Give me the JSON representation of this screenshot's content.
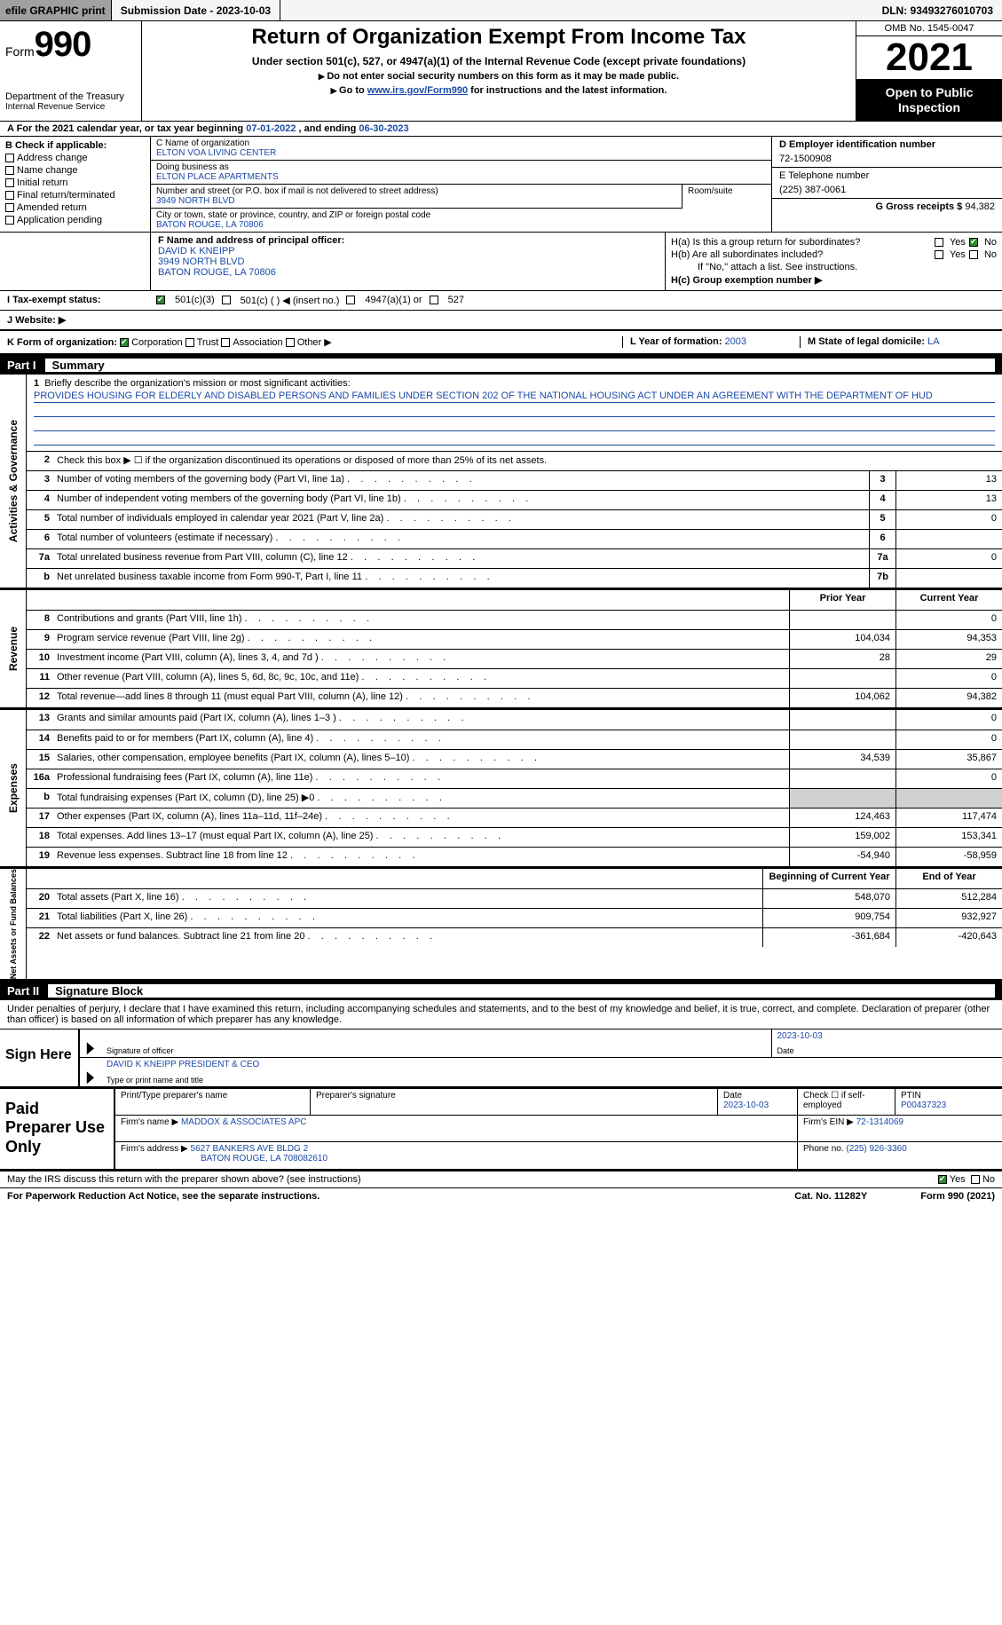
{
  "topbar": {
    "efile": "efile GRAPHIC print",
    "sub_date_label": "Submission Date - 2023-10-03",
    "dln": "DLN: 93493276010703"
  },
  "header": {
    "form_word": "Form",
    "form_num": "990",
    "title": "Return of Organization Exempt From Income Tax",
    "subtitle": "Under section 501(c), 527, or 4947(a)(1) of the Internal Revenue Code (except private foundations)",
    "note1": "Do not enter social security numbers on this form as it may be made public.",
    "note2_pre": "Go to ",
    "note2_link": "www.irs.gov/Form990",
    "note2_post": " for instructions and the latest information.",
    "dept": "Department of the Treasury",
    "irs": "Internal Revenue Service",
    "omb": "OMB No. 1545-0047",
    "year": "2021",
    "open": "Open to Public Inspection"
  },
  "rowA": {
    "pre": "A For the 2021 calendar year, or tax year beginning ",
    "begin": "07-01-2022",
    "mid": " , and ending ",
    "end": "06-30-2023"
  },
  "colB": {
    "title": "B Check if applicable:",
    "items": [
      "Address change",
      "Name change",
      "Initial return",
      "Final return/terminated",
      "Amended return",
      "Application pending"
    ]
  },
  "colC": {
    "name_lbl": "C Name of organization",
    "name": "ELTON VOA LIVING CENTER",
    "dba_lbl": "Doing business as",
    "dba": "ELTON PLACE APARTMENTS",
    "street_lbl": "Number and street (or P.O. box if mail is not delivered to street address)",
    "street": "3949 NORTH BLVD",
    "room_lbl": "Room/suite",
    "city_lbl": "City or town, state or province, country, and ZIP or foreign postal code",
    "city": "BATON ROUGE, LA  70806"
  },
  "colD": {
    "ein_lbl": "D Employer identification number",
    "ein": "72-1500908",
    "tel_lbl": "E Telephone number",
    "tel": "(225) 387-0061",
    "gross_lbl": "G Gross receipts $ ",
    "gross": "94,382"
  },
  "blockF": {
    "lbl": "F Name and address of principal officer:",
    "name": "DAVID K KNEIPP",
    "addr1": "3949 NORTH BLVD",
    "addr2": "BATON ROUGE, LA  70806"
  },
  "blockH": {
    "ha_lbl": "H(a)  Is this a group return for subordinates?",
    "hb_lbl": "H(b)  Are all subordinates included?",
    "hb_note": "If \"No,\" attach a list. See instructions.",
    "hc_lbl": "H(c)  Group exemption number ▶",
    "yes": "Yes",
    "no": "No"
  },
  "taxRow": {
    "lbl": "I  Tax-exempt status:",
    "o1": "501(c)(3)",
    "o2": "501(c) (   ) ◀ (insert no.)",
    "o3": "4947(a)(1) or",
    "o4": "527"
  },
  "web": {
    "lbl": "J  Website: ▶"
  },
  "korg": {
    "lbl": "K Form of organization:",
    "o1": "Corporation",
    "o2": "Trust",
    "o3": "Association",
    "o4": "Other ▶",
    "l_lbl": "L Year of formation: ",
    "l_val": "2003",
    "m_lbl": "M State of legal domicile: ",
    "m_val": "LA"
  },
  "part1": {
    "num": "Part I",
    "title": "Summary"
  },
  "sectA": {
    "label": "Activities & Governance",
    "l1_lbl": "Briefly describe the organization's mission or most significant activities:",
    "l1_txt": "PROVIDES HOUSING FOR ELDERLY AND DISABLED PERSONS AND FAMILIES UNDER SECTION 202 OF THE NATIONAL HOUSING ACT UNDER AN AGREEMENT WITH THE DEPARTMENT OF HUD",
    "l2": "Check this box ▶ ☐  if the organization discontinued its operations or disposed of more than 25% of its net assets.",
    "l3": "Number of voting members of the governing body (Part VI, line 1a)",
    "l4": "Number of independent voting members of the governing body (Part VI, line 1b)",
    "l5": "Total number of individuals employed in calendar year 2021 (Part V, line 2a)",
    "l6": "Total number of volunteers (estimate if necessary)",
    "l7a": "Total unrelated business revenue from Part VIII, column (C), line 12",
    "l7b": "Net unrelated business taxable income from Form 990-T, Part I, line 11",
    "v3": "13",
    "v4": "13",
    "v5": "0",
    "v6": "",
    "v7a": "0",
    "v7b": ""
  },
  "colhdr": {
    "prior": "Prior Year",
    "current": "Current Year"
  },
  "sectR": {
    "label": "Revenue",
    "rows": [
      {
        "n": "8",
        "t": "Contributions and grants (Part VIII, line 1h)",
        "p": "",
        "c": "0"
      },
      {
        "n": "9",
        "t": "Program service revenue (Part VIII, line 2g)",
        "p": "104,034",
        "c": "94,353"
      },
      {
        "n": "10",
        "t": "Investment income (Part VIII, column (A), lines 3, 4, and 7d )",
        "p": "28",
        "c": "29"
      },
      {
        "n": "11",
        "t": "Other revenue (Part VIII, column (A), lines 5, 6d, 8c, 9c, 10c, and 11e)",
        "p": "",
        "c": "0"
      },
      {
        "n": "12",
        "t": "Total revenue—add lines 8 through 11 (must equal Part VIII, column (A), line 12)",
        "p": "104,062",
        "c": "94,382"
      }
    ]
  },
  "sectE": {
    "label": "Expenses",
    "rows": [
      {
        "n": "13",
        "t": "Grants and similar amounts paid (Part IX, column (A), lines 1–3 )",
        "p": "",
        "c": "0"
      },
      {
        "n": "14",
        "t": "Benefits paid to or for members (Part IX, column (A), line 4)",
        "p": "",
        "c": "0"
      },
      {
        "n": "15",
        "t": "Salaries, other compensation, employee benefits (Part IX, column (A), lines 5–10)",
        "p": "34,539",
        "c": "35,867"
      },
      {
        "n": "16a",
        "t": "Professional fundraising fees (Part IX, column (A), line 11e)",
        "p": "",
        "c": "0"
      },
      {
        "n": "b",
        "t": "Total fundraising expenses (Part IX, column (D), line 25) ▶0",
        "p": "grey",
        "c": "grey"
      },
      {
        "n": "17",
        "t": "Other expenses (Part IX, column (A), lines 11a–11d, 11f–24e)",
        "p": "124,463",
        "c": "117,474"
      },
      {
        "n": "18",
        "t": "Total expenses. Add lines 13–17 (must equal Part IX, column (A), line 25)",
        "p": "159,002",
        "c": "153,341"
      },
      {
        "n": "19",
        "t": "Revenue less expenses. Subtract line 18 from line 12",
        "p": "-54,940",
        "c": "-58,959"
      }
    ]
  },
  "colhdr2": {
    "prior": "Beginning of Current Year",
    "current": "End of Year"
  },
  "sectN": {
    "label": "Net Assets or Fund Balances",
    "rows": [
      {
        "n": "20",
        "t": "Total assets (Part X, line 16)",
        "p": "548,070",
        "c": "512,284"
      },
      {
        "n": "21",
        "t": "Total liabilities (Part X, line 26)",
        "p": "909,754",
        "c": "932,927"
      },
      {
        "n": "22",
        "t": "Net assets or fund balances. Subtract line 21 from line 20",
        "p": "-361,684",
        "c": "-420,643"
      }
    ]
  },
  "part2": {
    "num": "Part II",
    "title": "Signature Block"
  },
  "sigtext": "Under penalties of perjury, I declare that I have examined this return, including accompanying schedules and statements, and to the best of my knowledge and belief, it is true, correct, and complete. Declaration of preparer (other than officer) is based on all information of which preparer has any knowledge.",
  "sign": {
    "left": "Sign Here",
    "sig_lbl": "Signature of officer",
    "date_lbl": "Date",
    "date": "2023-10-03",
    "name": "DAVID K KNEIPP  PRESIDENT & CEO",
    "name_lbl": "Type or print name and title"
  },
  "paid": {
    "left": "Paid Preparer Use Only",
    "r1c1_lbl": "Print/Type preparer's name",
    "r1c2_lbl": "Preparer's signature",
    "r1c3_lbl": "Date",
    "r1c3": "2023-10-03",
    "r1c4_lbl": "Check ☐ if self-employed",
    "r1c5_lbl": "PTIN",
    "r1c5": "P00437323",
    "r2_lbl": "Firm's name    ▶ ",
    "r2": "MADDOX & ASSOCIATES APC",
    "r2b_lbl": "Firm's EIN ▶ ",
    "r2b": "72-1314069",
    "r3_lbl": "Firm's address ▶ ",
    "r3a": "5627 BANKERS AVE BLDG 2",
    "r3b": "BATON ROUGE, LA  708082610",
    "r3c_lbl": "Phone no. ",
    "r3c": "(225) 926-3360"
  },
  "footer": {
    "q": "May the IRS discuss this return with the preparer shown above? (see instructions)",
    "yes": "Yes",
    "no": "No",
    "pra": "For Paperwork Reduction Act Notice, see the separate instructions.",
    "cat": "Cat. No. 11282Y",
    "form": "Form 990 (2021)"
  }
}
